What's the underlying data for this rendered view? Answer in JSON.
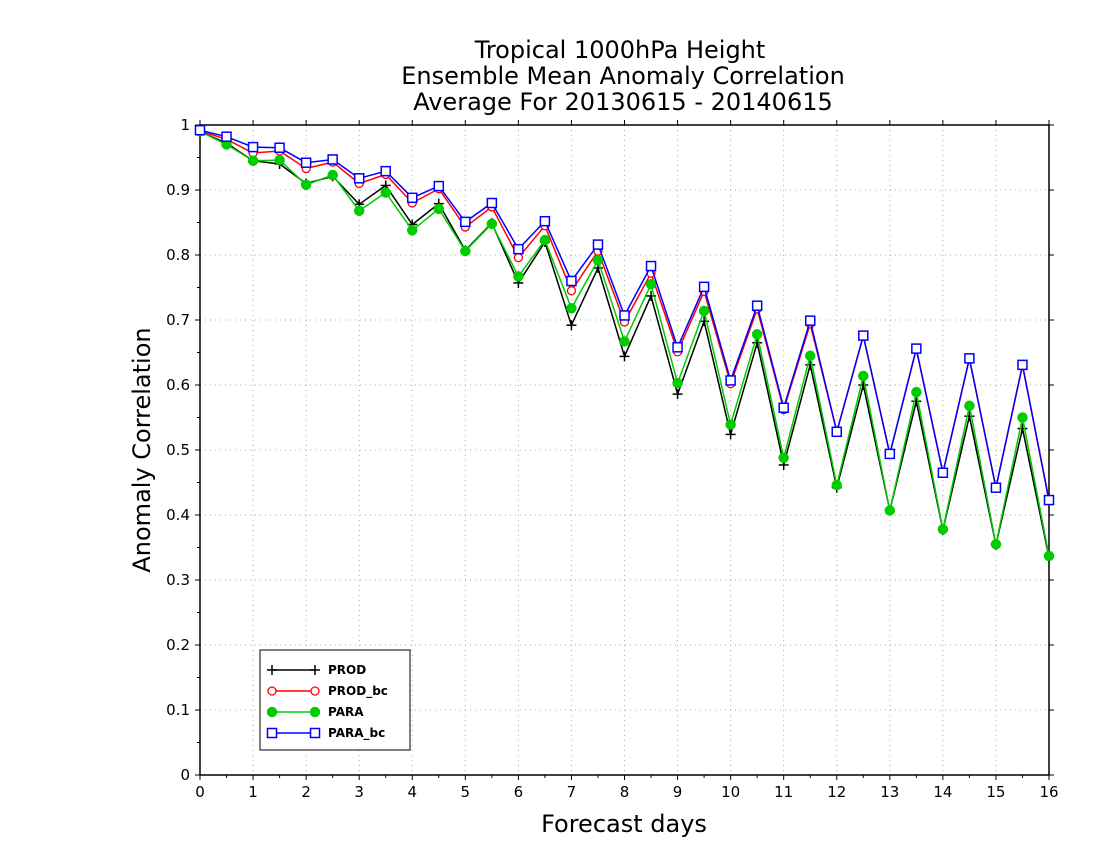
{
  "chart_data": {
    "type": "line",
    "title_lines": [
      "Tropical 1000hPa Height",
      "Ensemble Mean Anomaly Correlation",
      "Average For 20130615 - 20140615"
    ],
    "xlabel": "Forecast days",
    "ylabel": "Anomaly Correlation",
    "xlim": [
      0,
      16
    ],
    "ylim": [
      0,
      1
    ],
    "x_ticks": [
      0,
      1,
      2,
      3,
      4,
      5,
      6,
      7,
      8,
      9,
      10,
      11,
      12,
      13,
      14,
      15,
      16
    ],
    "y_ticks": [
      0,
      0.1,
      0.2,
      0.3,
      0.4,
      0.5,
      0.6,
      0.7,
      0.8,
      0.9,
      1
    ],
    "y_tick_labels": [
      "0",
      "0.1",
      "0.2",
      "0.3",
      "0.4",
      "0.5",
      "0.6",
      "0.7",
      "0.8",
      "0.9",
      "1"
    ],
    "grid": true,
    "legend_position": "bottom-left",
    "x": [
      0,
      0.5,
      1,
      1.5,
      2,
      2.5,
      3,
      3.5,
      4,
      4.5,
      5,
      5.5,
      6,
      6.5,
      7,
      7.5,
      8,
      8.5,
      9,
      9.5,
      10,
      10.5,
      11,
      11.5,
      12,
      12.5,
      13,
      13.5,
      14,
      14.5,
      15,
      15.5,
      16
    ],
    "series": [
      {
        "name": "PROD",
        "color": "#000000",
        "marker": "plus",
        "values": [
          0.99,
          0.972,
          0.945,
          0.94,
          0.91,
          0.921,
          0.878,
          0.907,
          0.847,
          0.879,
          0.807,
          0.849,
          0.757,
          0.82,
          0.692,
          0.78,
          0.644,
          0.737,
          0.586,
          0.698,
          0.524,
          0.665,
          0.477,
          0.631,
          0.442,
          0.6,
          0.407,
          0.575,
          0.377,
          0.552,
          0.354,
          0.533,
          0.335
        ]
      },
      {
        "name": "PROD_bc",
        "color": "#ff0000",
        "marker": "circle-open",
        "values": [
          0.991,
          0.978,
          0.957,
          0.96,
          0.933,
          0.943,
          0.91,
          0.924,
          0.88,
          0.902,
          0.843,
          0.874,
          0.796,
          0.845,
          0.745,
          0.806,
          0.697,
          0.772,
          0.651,
          0.744,
          0.602,
          0.717,
          0.562,
          0.694,
          0.528,
          0.675,
          0.494,
          0.655,
          0.465,
          0.64,
          0.442,
          0.63,
          0.422
        ]
      },
      {
        "name": "PARA",
        "color": "#00cc00",
        "marker": "circle-filled",
        "values": [
          0.99,
          0.97,
          0.945,
          0.946,
          0.908,
          0.923,
          0.868,
          0.896,
          0.838,
          0.871,
          0.806,
          0.848,
          0.767,
          0.823,
          0.718,
          0.792,
          0.667,
          0.755,
          0.603,
          0.714,
          0.539,
          0.678,
          0.488,
          0.645,
          0.446,
          0.614,
          0.407,
          0.589,
          0.378,
          0.568,
          0.355,
          0.55,
          0.337
        ]
      },
      {
        "name": "PARA_bc",
        "color": "#0000ff",
        "marker": "square-open",
        "values": [
          0.992,
          0.982,
          0.966,
          0.965,
          0.942,
          0.947,
          0.918,
          0.929,
          0.888,
          0.906,
          0.851,
          0.88,
          0.809,
          0.852,
          0.76,
          0.816,
          0.707,
          0.783,
          0.658,
          0.751,
          0.607,
          0.722,
          0.565,
          0.699,
          0.528,
          0.676,
          0.494,
          0.656,
          0.465,
          0.641,
          0.442,
          0.631,
          0.423
        ]
      }
    ]
  }
}
